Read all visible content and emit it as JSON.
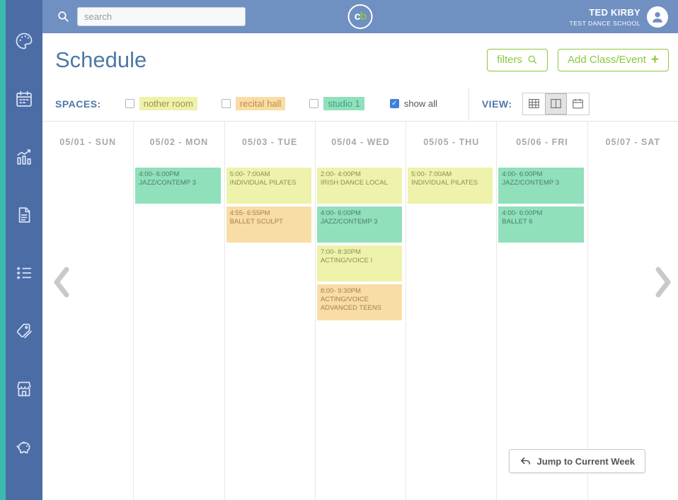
{
  "colors": {
    "teal_strip": "#3ab9b0",
    "sidebar_bg": "#4c6ca6",
    "topbar_bg": "#7090c2",
    "accent_blue": "#4d78a7",
    "accent_green": "#8dc63f",
    "checkbox_checked": "#3e7fdc",
    "event_colors": {
      "green": {
        "bg": "#8fe0bb",
        "text": "#4e7d6a"
      },
      "yellow": {
        "bg": "#eef2aa",
        "text": "#8d8d55"
      },
      "orange": {
        "bg": "#f9dda6",
        "text": "#a5814c"
      }
    },
    "space_label_colors": {
      "green": {
        "bg": "#8fe0bb",
        "text": "#3fa384"
      },
      "yellow": {
        "bg": "#eef2aa",
        "text": "#97974e"
      },
      "orange": {
        "bg": "#f9dda6",
        "text": "#c18a43"
      }
    }
  },
  "sidebar": {
    "icons": [
      "palette",
      "calendar",
      "chart",
      "document",
      "checklist",
      "tags",
      "storefront",
      "piggy-bank"
    ]
  },
  "topbar": {
    "search_placeholder": "search",
    "logo": {
      "c": "c",
      "b": "b"
    },
    "user_name": "TED KIRBY",
    "user_school": "TEST DANCE SCHOOL"
  },
  "header": {
    "title": "Schedule",
    "filters_label": "filters",
    "add_label": "Add Class/Event",
    "add_plus": "+"
  },
  "spaces_bar": {
    "label": "SPACES:",
    "options": [
      {
        "label": "nother room",
        "color_key": "yellow",
        "checked": false
      },
      {
        "label": "recital hall",
        "color_key": "orange",
        "checked": false
      },
      {
        "label": "studio 1",
        "color_key": "green",
        "checked": false
      }
    ],
    "show_all": {
      "label": "show all",
      "checked": true
    },
    "view_label": "VIEW:",
    "view_options": [
      {
        "name": "grid",
        "selected": false
      },
      {
        "name": "columns",
        "selected": true
      },
      {
        "name": "month",
        "selected": false
      }
    ]
  },
  "calendar": {
    "days": [
      {
        "header": "05/01 - SUN",
        "events": []
      },
      {
        "header": "05/02 - MON",
        "events": [
          {
            "time": "4:00- 6:00PM",
            "title": "JAZZ/CONTEMP 3",
            "color": "green",
            "slot": 0
          }
        ]
      },
      {
        "header": "05/03 - TUE",
        "events": [
          {
            "time": "5:00- 7:00AM",
            "title": "INDIVIDUAL PILATES",
            "color": "yellow",
            "slot": 0
          },
          {
            "time": "4:55- 6:55PM",
            "title": "BALLET SCULPT",
            "color": "orange",
            "slot": 1
          }
        ]
      },
      {
        "header": "05/04 - WED",
        "events": [
          {
            "time": "2:00- 4:00PM",
            "title": "IRISH DANCE LOCAL",
            "color": "yellow",
            "slot": 0
          },
          {
            "time": "4:00- 6:00PM",
            "title": "JAZZ/CONTEMP 3",
            "color": "green",
            "slot": 1
          },
          {
            "time": "7:00- 8:30PM",
            "title": "ACTING/VOICE I",
            "color": "yellow",
            "slot": 2
          },
          {
            "time": "8:00- 9:30PM",
            "title": "ACTING/VOICE ADVANCED TEENS",
            "color": "orange",
            "slot": 3
          }
        ]
      },
      {
        "header": "05/05 - THU",
        "events": [
          {
            "time": "5:00- 7:00AM",
            "title": "INDIVIDUAL PILATES",
            "color": "yellow",
            "slot": 0
          }
        ]
      },
      {
        "header": "05/06 - FRI",
        "events": [
          {
            "time": "4:00- 6:00PM",
            "title": "JAZZ/CONTEMP 3",
            "color": "green",
            "slot": 0
          },
          {
            "time": "4:00- 6:00PM",
            "title": "BALLET 6",
            "color": "green",
            "slot": 1
          }
        ]
      },
      {
        "header": "05/07 - SAT",
        "events": []
      }
    ],
    "jump_label": "Jump to Current Week"
  }
}
